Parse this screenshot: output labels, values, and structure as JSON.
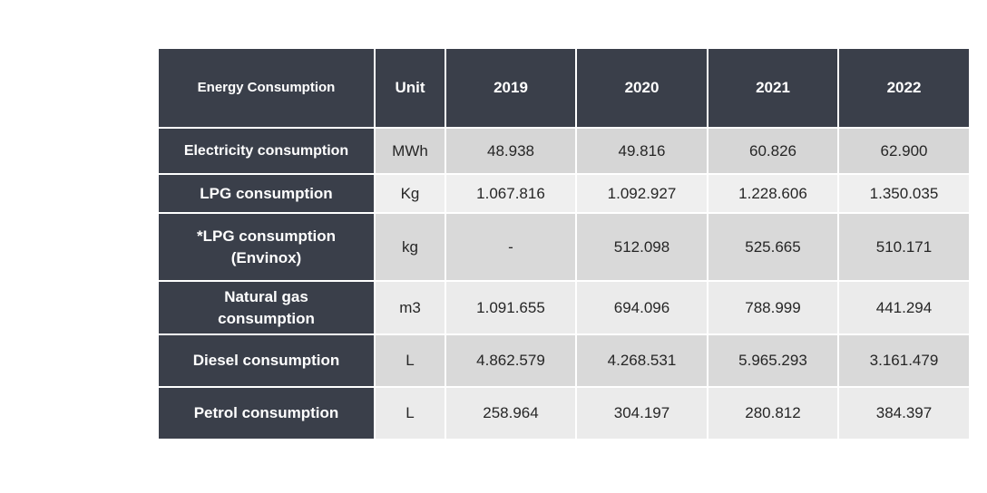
{
  "table": {
    "headers": [
      "Energy Consumption",
      "Unit",
      "2019",
      "2020",
      "2021",
      "2022"
    ],
    "rows": [
      {
        "label": "Electricity consumption",
        "unit": "MWh",
        "values": [
          "48.938",
          "49.816",
          "60.826",
          "62.900"
        ]
      },
      {
        "label": "LPG consumption",
        "unit": "Kg",
        "values": [
          "1.067.816",
          "1.092.927",
          "1.228.606",
          "1.350.035"
        ]
      },
      {
        "label_line1": "*LPG consumption",
        "label_line2": "(Envinox)",
        "unit": "kg",
        "values": [
          "-",
          "512.098",
          "525.665",
          "510.171"
        ]
      },
      {
        "label_line1": "Natural gas",
        "label_line2": "consumption",
        "unit": "m3",
        "values": [
          "1.091.655",
          "694.096",
          "788.999",
          "441.294"
        ]
      },
      {
        "label": "Diesel consumption",
        "unit": "L",
        "values": [
          "4.862.579",
          "4.268.531",
          "5.965.293",
          "3.161.479"
        ]
      },
      {
        "label": "Petrol consumption",
        "unit": "L",
        "values": [
          "258.964",
          "304.197",
          "280.812",
          "384.397"
        ]
      }
    ],
    "colors": {
      "header_bg": "#3a3f4a",
      "header_text": "#ffffff",
      "row_band_dark": "#d9d9d9",
      "row_band_light": "#ebebeb"
    }
  }
}
